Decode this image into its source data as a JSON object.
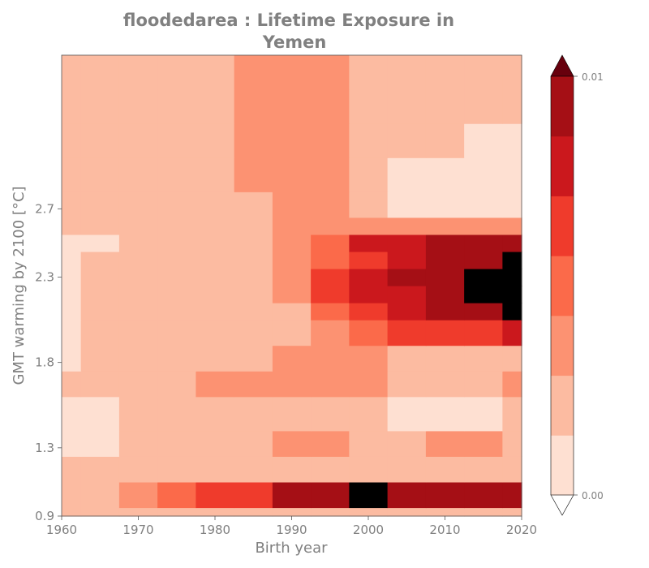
{
  "chart_data": {
    "type": "heatmap",
    "title_line1": "floodedarea : Lifetime Exposure in",
    "title_line2": "Yemen",
    "xlabel": "Birth year",
    "ylabel": "GMT warming by 2100 [°C]",
    "xlim": [
      1960,
      2020
    ],
    "ylim": [
      0.9,
      3.6
    ],
    "x_ticks": [
      "1960",
      "1970",
      "1980",
      "1990",
      "2000",
      "2010",
      "2020"
    ],
    "y_ticks": [
      "0.9",
      "1.3",
      "1.8",
      "2.3",
      "2.7"
    ],
    "colorbar": {
      "min_label": "0.00",
      "max_label": "0.01",
      "levels": 7,
      "extend": "both",
      "colors": [
        "#fee0d2",
        "#fcbba1",
        "#fc9272",
        "#fb6a4a",
        "#ef3b2c",
        "#cb181d",
        "#a50f15"
      ],
      "under_color": "#ffffff",
      "over_color": "#67000d"
    },
    "x": [
      1960,
      1965,
      1970,
      1975,
      1980,
      1985,
      1990,
      1995,
      2000,
      2005,
      2010,
      2015,
      2020
    ],
    "y": [
      0.9,
      1.0,
      1.2,
      1.3,
      1.5,
      1.7,
      1.8,
      2.0,
      2.1,
      2.2,
      2.3,
      2.4,
      2.5,
      2.6,
      2.7,
      2.9,
      3.1,
      3.3,
      3.5
    ],
    "z": [
      [
        1,
        1,
        1,
        1,
        1,
        1,
        1,
        1,
        1,
        1,
        1,
        1,
        1
      ],
      [
        1,
        1,
        2,
        3,
        4,
        4,
        6,
        6,
        7,
        6,
        6,
        6,
        6
      ],
      [
        1,
        1,
        1,
        1,
        1,
        1,
        1,
        1,
        1,
        1,
        1,
        1,
        1
      ],
      [
        0,
        0,
        1,
        1,
        1,
        1,
        2,
        2,
        1,
        1,
        2,
        2,
        1
      ],
      [
        0,
        0,
        1,
        1,
        1,
        1,
        1,
        1,
        1,
        0,
        0,
        0,
        1
      ],
      [
        1,
        1,
        1,
        1,
        2,
        2,
        2,
        2,
        2,
        1,
        1,
        1,
        2
      ],
      [
        0,
        1,
        1,
        1,
        1,
        1,
        2,
        2,
        2,
        1,
        1,
        1,
        1
      ],
      [
        0,
        1,
        1,
        1,
        1,
        1,
        1,
        2,
        3,
        4,
        4,
        4,
        5
      ],
      [
        0,
        1,
        1,
        1,
        1,
        1,
        1,
        3,
        4,
        5,
        6,
        6,
        7
      ],
      [
        0,
        1,
        1,
        1,
        1,
        1,
        2,
        4,
        5,
        5,
        6,
        7,
        7
      ],
      [
        0,
        1,
        1,
        1,
        1,
        1,
        2,
        4,
        5,
        6,
        6,
        7,
        7
      ],
      [
        0,
        1,
        1,
        1,
        1,
        1,
        2,
        3,
        4,
        5,
        6,
        6,
        7
      ],
      [
        0,
        0,
        1,
        1,
        1,
        1,
        2,
        3,
        5,
        5,
        6,
        6,
        6
      ],
      [
        1,
        1,
        1,
        1,
        1,
        1,
        2,
        2,
        2,
        2,
        2,
        2,
        2
      ],
      [
        1,
        1,
        1,
        1,
        1,
        1,
        2,
        2,
        1,
        0,
        0,
        0,
        0
      ],
      [
        1,
        1,
        1,
        1,
        1,
        2,
        2,
        2,
        1,
        0,
        0,
        0,
        0
      ],
      [
        1,
        1,
        1,
        1,
        1,
        2,
        2,
        2,
        1,
        1,
        1,
        0,
        0
      ],
      [
        1,
        1,
        1,
        1,
        1,
        2,
        2,
        2,
        1,
        1,
        1,
        1,
        1
      ],
      [
        1,
        1,
        1,
        1,
        1,
        2,
        2,
        2,
        1,
        1,
        1,
        1,
        1
      ]
    ]
  }
}
